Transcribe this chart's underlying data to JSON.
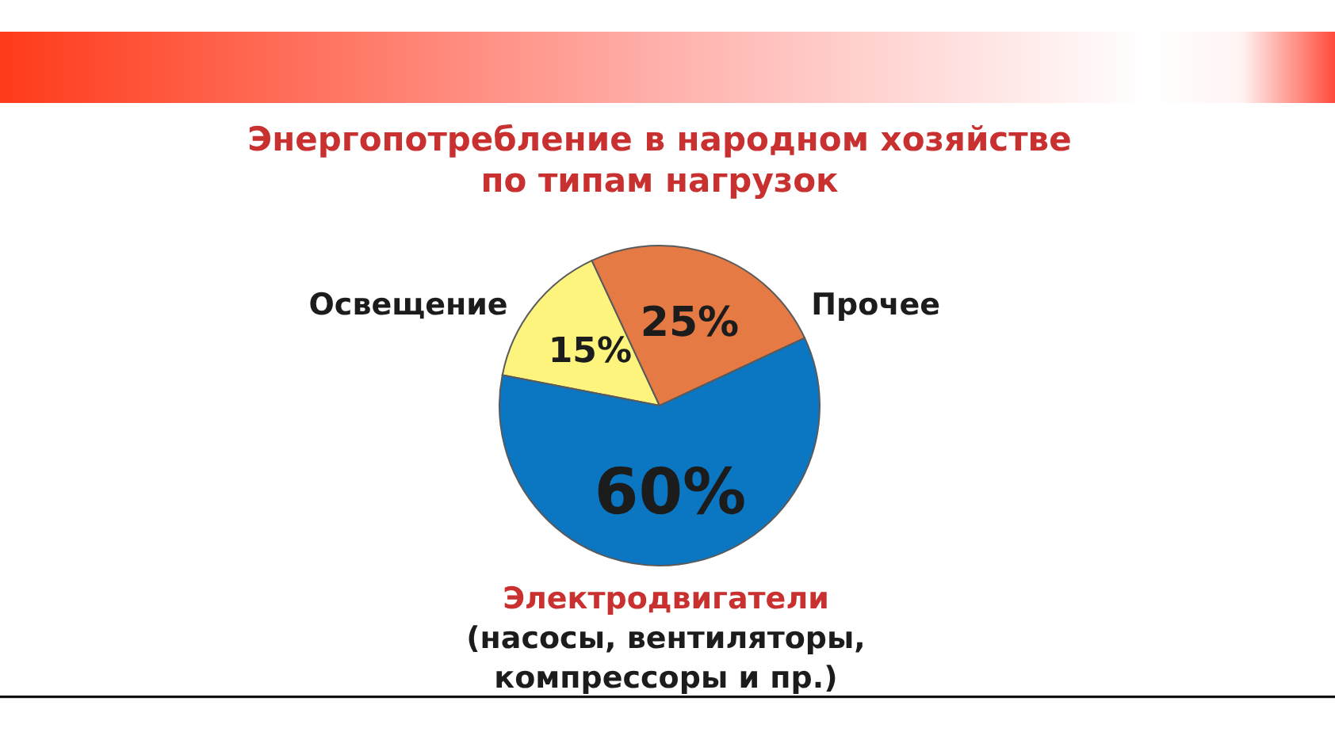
{
  "chart_data": {
    "type": "pie",
    "title": "Энергопотребление в народном хозяйстве по типам нагрузок",
    "categories": [
      "Освещение",
      "Прочее",
      "Электродвигатели"
    ],
    "values": [
      15,
      25,
      60
    ],
    "colors": [
      "#fcf47c",
      "#e57a45",
      "#0b76c1"
    ],
    "value_labels": [
      "15%",
      "25%",
      "60%"
    ],
    "annotations": [
      "(насосы, вентиляторы, компрессоры и пр.)"
    ]
  }
}
